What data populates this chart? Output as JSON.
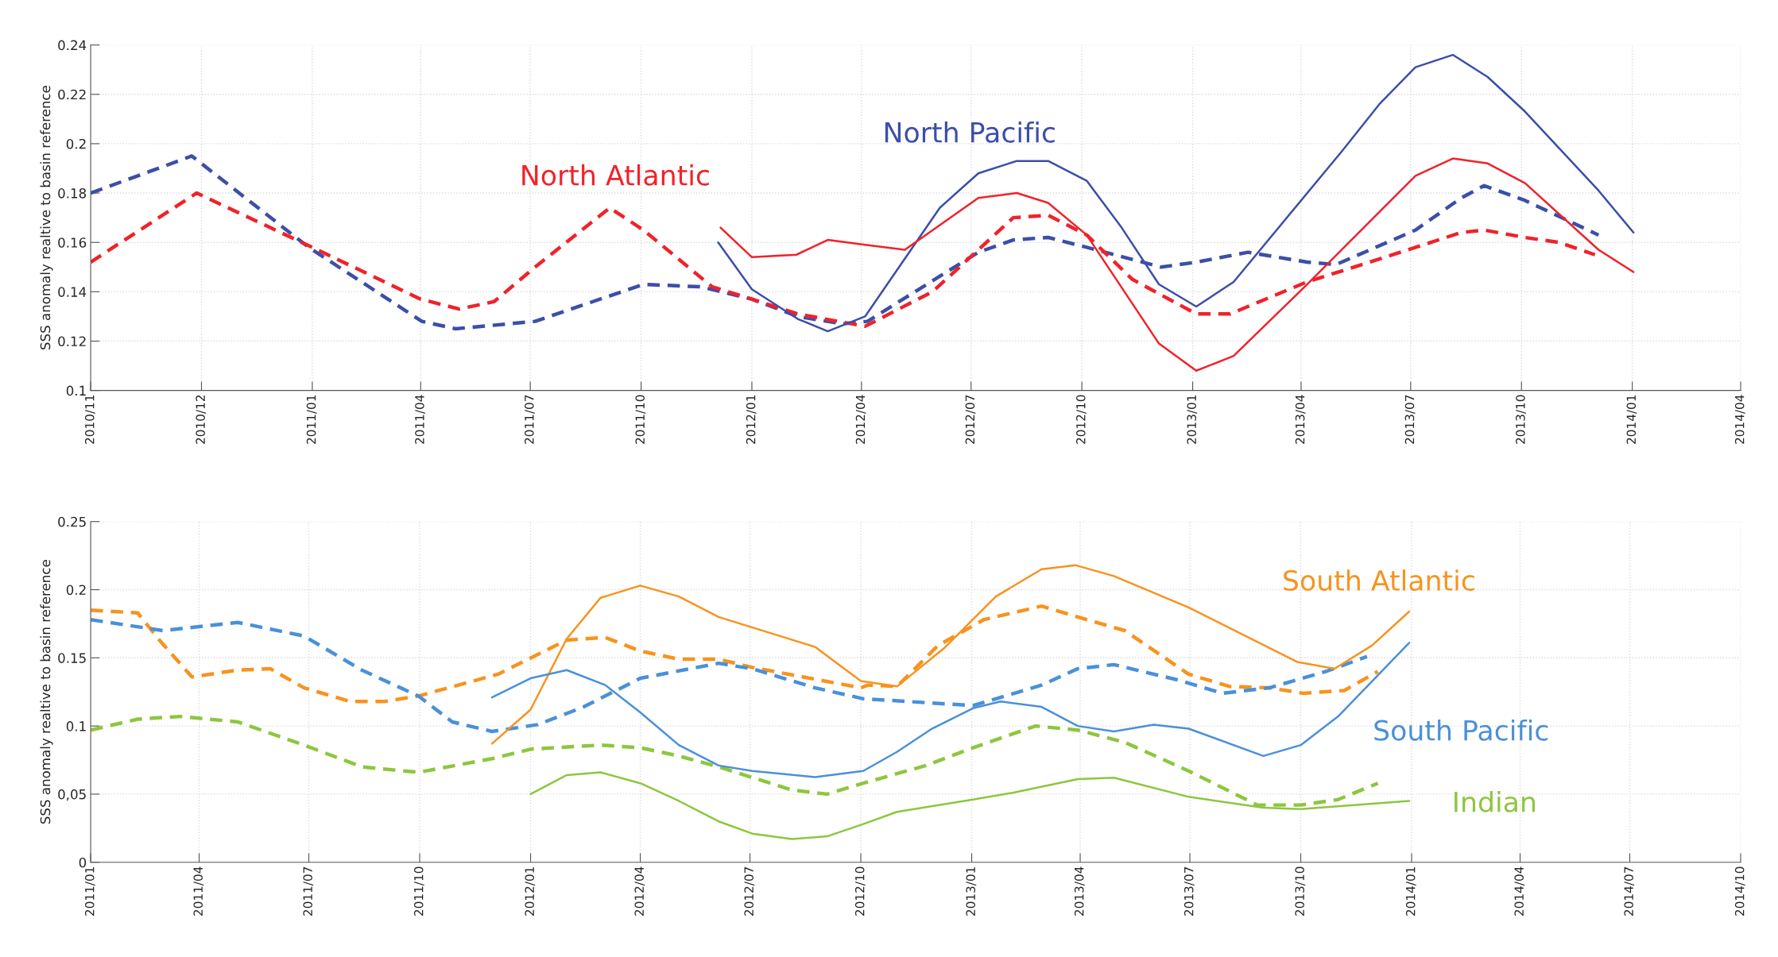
{
  "chart_data": [
    {
      "type": "line",
      "ylabel": "SSS anomaly realtive to basin reference",
      "xlim": [
        "2010-07-01",
        "2014-04-01"
      ],
      "ylim": [
        0.1,
        0.24
      ],
      "xticks": [
        {
          "value": "2010-07-01",
          "label": "2010/11"
        },
        {
          "value": "2010-10-01",
          "label": "2010/12"
        },
        {
          "value": "2011-01-01",
          "label": "2011/01"
        },
        {
          "value": "2011-04-01",
          "label": "2011/04"
        },
        {
          "value": "2011-07-01",
          "label": "2011/07"
        },
        {
          "value": "2011-10-01",
          "label": "2011/10"
        },
        {
          "value": "2012-01-01",
          "label": "2012/01"
        },
        {
          "value": "2012-04-01",
          "label": "2012/04"
        },
        {
          "value": "2012-07-01",
          "label": "2012/07"
        },
        {
          "value": "2012-10-01",
          "label": "2012/10"
        },
        {
          "value": "2013-01-01",
          "label": "2013/01"
        },
        {
          "value": "2013-04-01",
          "label": "2013/04"
        },
        {
          "value": "2013-07-01",
          "label": "2013/07"
        },
        {
          "value": "2013-10-01",
          "label": "2013/10"
        },
        {
          "value": "2014-01-01",
          "label": "2014/01"
        },
        {
          "value": "2014-04-01",
          "label": "2014/04"
        }
      ],
      "yticks": [
        0.1,
        0.12,
        0.14,
        0.16,
        0.18,
        0.2,
        0.22,
        0.24
      ],
      "grid": true,
      "series": [
        {
          "color": "#3b4fa8",
          "line_style": "dashed",
          "x": [
            "2010-07-01",
            "2010-09-23",
            "2010-12-29",
            "2011-04-02",
            "2011-04-30",
            "2011-07-05",
            "2011-10-03",
            "2011-11-20",
            "2012-01-01",
            "2012-02-08",
            "2012-03-16",
            "2012-04-06",
            "2012-07-07",
            "2012-08-05",
            "2012-09-03",
            "2012-10-05",
            "2012-12-06",
            "2013-01-04",
            "2013-02-16",
            "2013-04-06",
            "2013-04-30",
            "2013-07-05",
            "2013-08-12",
            "2013-08-31",
            "2013-10-04",
            "2013-12-04"
          ],
          "values": [
            0.18,
            0.195,
            0.158,
            0.128,
            0.125,
            0.128,
            0.143,
            0.142,
            0.137,
            0.13,
            0.127,
            0.128,
            0.156,
            0.161,
            0.162,
            0.158,
            0.15,
            0.152,
            0.156,
            0.152,
            0.151,
            0.165,
            0.178,
            0.183,
            0.177,
            0.163
          ]
        },
        {
          "color": "#f0222a",
          "line_style": "dashed",
          "x": [
            "2010-07-01",
            "2010-09-27",
            "2011-01-01",
            "2011-04-01",
            "2011-05-03",
            "2011-06-01",
            "2011-07-05",
            "2011-09-05",
            "2011-10-03",
            "2011-11-29",
            "2012-01-01",
            "2012-02-08",
            "2012-04-04",
            "2012-05-30",
            "2012-07-07",
            "2012-08-05",
            "2012-09-03",
            "2012-10-05",
            "2012-11-12",
            "2013-01-04",
            "2013-02-01",
            "2013-04-06",
            "2013-05-28",
            "2013-07-05",
            "2013-08-12",
            "2013-08-31",
            "2013-10-04",
            "2013-11-01",
            "2013-12-01"
          ],
          "values": [
            0.152,
            0.18,
            0.158,
            0.137,
            0.133,
            0.136,
            0.15,
            0.174,
            0.165,
            0.142,
            0.137,
            0.131,
            0.126,
            0.14,
            0.157,
            0.17,
            0.171,
            0.163,
            0.145,
            0.131,
            0.131,
            0.144,
            0.152,
            0.158,
            0.164,
            0.165,
            0.162,
            0.16,
            0.155
          ]
        },
        {
          "name": "North Pacific",
          "color": "#3b4fa8",
          "line_style": "solid",
          "x": [
            "2011-12-04",
            "2012-01-01",
            "2012-02-08",
            "2012-03-04",
            "2012-04-04",
            "2012-06-05",
            "2012-07-07",
            "2012-08-08",
            "2012-09-03",
            "2012-10-05",
            "2012-11-03",
            "2012-12-04",
            "2013-01-04",
            "2013-02-04",
            "2013-05-05",
            "2013-06-05",
            "2013-07-05",
            "2013-08-05",
            "2013-09-03",
            "2013-10-04",
            "2013-12-04",
            "2014-01-02"
          ],
          "values": [
            0.16,
            0.141,
            0.129,
            0.124,
            0.13,
            0.174,
            0.188,
            0.193,
            0.193,
            0.185,
            0.166,
            0.143,
            0.134,
            0.144,
            0.197,
            0.216,
            0.231,
            0.236,
            0.227,
            0.213,
            0.181,
            0.164
          ]
        },
        {
          "name": "North Atlantic",
          "color": "#f0222a",
          "line_style": "solid",
          "x": [
            "2011-12-06",
            "2012-01-01",
            "2012-02-07",
            "2012-03-04",
            "2012-04-04",
            "2012-05-07",
            "2012-07-07",
            "2012-08-08",
            "2012-09-03",
            "2012-10-05",
            "2012-12-04",
            "2013-01-04",
            "2013-02-04",
            "2013-04-06",
            "2013-07-05",
            "2013-08-05",
            "2013-09-03",
            "2013-10-04",
            "2013-12-04",
            "2014-01-02"
          ],
          "values": [
            0.166,
            0.154,
            0.155,
            0.161,
            0.159,
            0.157,
            0.178,
            0.18,
            0.176,
            0.163,
            0.119,
            0.108,
            0.114,
            0.143,
            0.187,
            0.194,
            0.192,
            0.184,
            0.157,
            0.148
          ]
        }
      ]
    },
    {
      "type": "line",
      "ylabel": "SSS anomaly realtive to basin reference",
      "xlim": [
        "2011-01-01",
        "2014-10-01"
      ],
      "ylim": [
        0,
        0.25
      ],
      "xticks": [
        {
          "value": "2011-01-01",
          "label": "2011/01"
        },
        {
          "value": "2011-04-01",
          "label": "2011/04"
        },
        {
          "value": "2011-07-01",
          "label": "2011/07"
        },
        {
          "value": "2011-10-01",
          "label": "2011/10"
        },
        {
          "value": "2012-01-01",
          "label": "2012/01"
        },
        {
          "value": "2012-04-01",
          "label": "2012/04"
        },
        {
          "value": "2012-07-01",
          "label": "2012/07"
        },
        {
          "value": "2012-10-01",
          "label": "2012/10"
        },
        {
          "value": "2013-01-01",
          "label": "2013/01"
        },
        {
          "value": "2013-04-01",
          "label": "2013/04"
        },
        {
          "value": "2013-07-01",
          "label": "2013/07"
        },
        {
          "value": "2013-10-01",
          "label": "2013/10"
        },
        {
          "value": "2014-01-01",
          "label": "2014/01"
        },
        {
          "value": "2014-04-01",
          "label": "2014/04"
        },
        {
          "value": "2014-07-01",
          "label": "2014/07"
        },
        {
          "value": "2014-10-01",
          "label": "2014/10"
        }
      ],
      "yticks": [
        0,
        {
          "value": 0.05,
          "label": "0,05"
        },
        0.1,
        0.15,
        0.2,
        0.25
      ],
      "grid": true,
      "series": [
        {
          "color": "#f7931e",
          "line_style": "dashed",
          "x": [
            "2011-01-01",
            "2011-02-09",
            "2011-02-28",
            "2011-03-26",
            "2011-05-03",
            "2011-05-30",
            "2011-06-27",
            "2011-08-04",
            "2011-09-02",
            "2011-09-30",
            "2011-12-05",
            "2012-01-31",
            "2012-03-03",
            "2012-04-01",
            "2012-05-03",
            "2012-06-05",
            "2012-07-03",
            "2012-10-01",
            "2012-10-07",
            "2012-10-31",
            "2012-12-04",
            "2013-01-11",
            "2013-02-28",
            "2013-03-30",
            "2013-05-08",
            "2013-06-30",
            "2013-08-03",
            "2013-09-05",
            "2013-10-03",
            "2013-11-06",
            "2013-12-04"
          ],
          "values": [
            0.185,
            0.183,
            0.162,
            0.136,
            0.141,
            0.142,
            0.128,
            0.118,
            0.118,
            0.122,
            0.138,
            0.163,
            0.165,
            0.155,
            0.149,
            0.149,
            0.143,
            0.128,
            0.13,
            0.129,
            0.159,
            0.178,
            0.188,
            0.18,
            0.17,
            0.138,
            0.129,
            0.128,
            0.124,
            0.126,
            0.14
          ]
        },
        {
          "color": "#4a90d9",
          "line_style": "dashed",
          "x": [
            "2011-01-01",
            "2011-03-02",
            "2011-05-03",
            "2011-06-27",
            "2011-08-14",
            "2011-09-30",
            "2011-10-28",
            "2011-11-30",
            "2012-01-07",
            "2012-02-14",
            "2012-04-01",
            "2012-06-05",
            "2012-07-03",
            "2012-08-24",
            "2012-10-03",
            "2013-01-02",
            "2013-02-28",
            "2013-03-30",
            "2013-04-29",
            "2013-06-20",
            "2013-07-28",
            "2013-09-05",
            "2013-10-22",
            "2013-11-25"
          ],
          "values": [
            0.178,
            0.17,
            0.176,
            0.166,
            0.141,
            0.122,
            0.103,
            0.096,
            0.101,
            0.114,
            0.135,
            0.146,
            0.142,
            0.128,
            0.12,
            0.115,
            0.13,
            0.142,
            0.145,
            0.134,
            0.124,
            0.128,
            0.14,
            0.151
          ]
        },
        {
          "color": "#8dc63f",
          "line_style": "dashed",
          "x": [
            "2011-01-01",
            "2011-02-09",
            "2011-03-16",
            "2011-05-03",
            "2011-06-27",
            "2011-08-14",
            "2011-09-30",
            "2011-11-30",
            "2012-01-01",
            "2012-02-28",
            "2012-04-01",
            "2012-05-03",
            "2012-06-05",
            "2012-08-05",
            "2012-09-03",
            "2012-10-03",
            "2012-11-24",
            "2013-01-02",
            "2013-02-23",
            "2013-03-30",
            "2013-05-08",
            "2013-06-30",
            "2013-08-26",
            "2013-10-01",
            "2013-11-01",
            "2013-12-04"
          ],
          "values": [
            0.097,
            0.105,
            0.107,
            0.103,
            0.086,
            0.07,
            0.066,
            0.076,
            0.083,
            0.086,
            0.084,
            0.078,
            0.07,
            0.053,
            0.05,
            0.058,
            0.071,
            0.084,
            0.1,
            0.097,
            0.088,
            0.067,
            0.042,
            0.042,
            0.046,
            0.058
          ]
        },
        {
          "name": "South Atlantic",
          "color": "#f7931e",
          "line_style": "solid",
          "x": [
            "2011-11-30",
            "2012-01-01",
            "2012-01-31",
            "2012-02-28",
            "2012-04-01",
            "2012-05-03",
            "2012-06-05",
            "2012-08-24",
            "2012-10-01",
            "2012-10-31",
            "2012-12-09",
            "2013-01-21",
            "2013-02-28",
            "2013-03-28",
            "2013-04-29",
            "2013-06-30",
            "2013-09-28",
            "2013-10-29",
            "2013-11-29",
            "2013-12-30"
          ],
          "values": [
            0.087,
            0.112,
            0.164,
            0.194,
            0.203,
            0.195,
            0.18,
            0.158,
            0.133,
            0.129,
            0.157,
            0.195,
            0.215,
            0.218,
            0.21,
            0.187,
            0.147,
            0.142,
            0.159,
            0.184
          ]
        },
        {
          "name": "South Pacific",
          "color": "#4a90d9",
          "line_style": "solid",
          "x": [
            "2011-11-30",
            "2012-01-01",
            "2012-01-31",
            "2012-03-03",
            "2012-04-01",
            "2012-05-03",
            "2012-06-05",
            "2012-07-03",
            "2012-08-24",
            "2012-10-03",
            "2012-10-31",
            "2012-11-29",
            "2013-01-02",
            "2013-01-25",
            "2013-02-28",
            "2013-03-30",
            "2013-04-29",
            "2013-06-01",
            "2013-06-30",
            "2013-08-31",
            "2013-10-01",
            "2013-11-01",
            "2013-12-30"
          ],
          "values": [
            0.121,
            0.135,
            0.141,
            0.13,
            0.11,
            0.086,
            0.071,
            0.067,
            0.0625,
            0.067,
            0.081,
            0.098,
            0.113,
            0.118,
            0.114,
            0.1,
            0.096,
            0.101,
            0.098,
            0.078,
            0.086,
            0.107,
            0.161
          ]
        },
        {
          "name": "Indian",
          "color": "#8dc63f",
          "line_style": "solid",
          "x": [
            "2012-01-01",
            "2012-01-31",
            "2012-02-28",
            "2012-04-01",
            "2012-05-03",
            "2012-06-05",
            "2012-07-03",
            "2012-08-05",
            "2012-09-03",
            "2012-10-03",
            "2012-10-31",
            "2013-01-02",
            "2013-02-04",
            "2013-03-30",
            "2013-04-29",
            "2013-06-30",
            "2013-08-31",
            "2013-10-01",
            "2013-12-30"
          ],
          "values": [
            0.05,
            0.064,
            0.066,
            0.058,
            0.045,
            0.03,
            0.021,
            0.017,
            0.019,
            0.028,
            0.037,
            0.046,
            0.051,
            0.061,
            0.062,
            0.048,
            0.04,
            0.039,
            0.045
          ]
        }
      ]
    }
  ]
}
